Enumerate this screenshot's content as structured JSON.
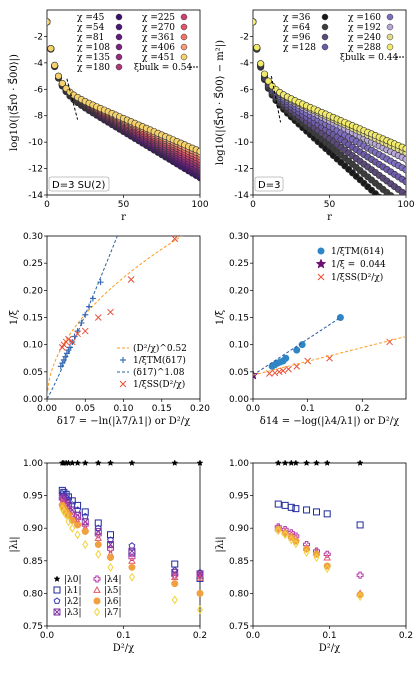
{
  "chart_data": [
    {
      "id": "tl",
      "type": "scatter",
      "annotation": "D=3 SU(2)",
      "xlabel": "r",
      "ylabel": "log10(|⟨S⃗r0 · S⃗00⟩|)",
      "xlim": [
        0,
        100
      ],
      "ylim": [
        -14,
        0
      ],
      "xticks": [
        0,
        50,
        100
      ],
      "yticks": [
        -14,
        -12,
        -10,
        -8,
        -6,
        -4,
        -2
      ],
      "legend_position": "top",
      "series": [
        {
          "name": "χ =45",
          "color": "#3b0f70",
          "slope": 0.07
        },
        {
          "name": "χ =54",
          "color": "#4a1478",
          "slope": 0.068
        },
        {
          "name": "χ =81",
          "color": "#611a7e",
          "slope": 0.066
        },
        {
          "name": "χ =108",
          "color": "#7a2281",
          "slope": 0.064
        },
        {
          "name": "χ =135",
          "color": "#932b80",
          "slope": 0.062
        },
        {
          "name": "χ =180",
          "color": "#b0367a",
          "slope": 0.06
        },
        {
          "name": "χ =225",
          "color": "#cd4071",
          "slope": 0.058
        },
        {
          "name": "χ =270",
          "color": "#e3566a",
          "slope": 0.056
        },
        {
          "name": "χ =361",
          "color": "#f1766a",
          "slope": 0.054
        },
        {
          "name": "χ =406",
          "color": "#f79c7a",
          "slope": 0.052
        },
        {
          "name": "χ =451",
          "color": "#f5d26b",
          "slope": 0.05
        }
      ],
      "reference": {
        "name": "ξbulk = 0.54",
        "x": [
          13,
          20
        ],
        "y": [
          -5.2,
          -8.3
        ]
      }
    },
    {
      "id": "tr",
      "type": "scatter",
      "annotation": "D=3",
      "xlabel": "r",
      "ylabel": "log10(|⟨S⃗r0 · S⃗00⟩ − m²|)",
      "xlim": [
        0,
        100
      ],
      "ylim": [
        -14,
        0
      ],
      "xticks": [
        0,
        50,
        100
      ],
      "yticks": [
        -14,
        -12,
        -10,
        -8,
        -6,
        -4,
        -2
      ],
      "legend_position": "top",
      "series": [
        {
          "name": "χ =36",
          "color": "#1a1a1a",
          "slope": 0.105
        },
        {
          "name": "χ =64",
          "color": "#3d3d3d",
          "slope": 0.095
        },
        {
          "name": "χ =96",
          "color": "#5b4a7a",
          "slope": 0.085
        },
        {
          "name": "χ =128",
          "color": "#6d5aa8",
          "slope": 0.075
        },
        {
          "name": "χ =160",
          "color": "#7f6ec0",
          "slope": 0.066
        },
        {
          "name": "χ =192",
          "color": "#b8a8d8",
          "slope": 0.058
        },
        {
          "name": "χ =240",
          "color": "#e2dc8a",
          "slope": 0.053
        },
        {
          "name": "χ =288",
          "color": "#f2ea6a",
          "slope": 0.05
        }
      ],
      "reference": {
        "name": "ξbulk = 0.44",
        "x": [
          12,
          18
        ],
        "y": [
          -5.0,
          -8.5
        ]
      }
    },
    {
      "id": "ml",
      "type": "scatter",
      "xlabel": "δ17 = −ln(|λ7/λ1|) or D²/χ",
      "ylabel": "1/ξ",
      "xlim": [
        0,
        0.2
      ],
      "ylim": [
        0,
        0.3
      ],
      "xticks": [
        0,
        0.05,
        0.1,
        0.15,
        0.2
      ],
      "yticks": [
        0,
        0.05,
        0.1,
        0.15,
        0.2,
        0.25,
        0.3
      ],
      "legend_position": "lower-right",
      "series": [
        {
          "name": "(D²/χ)^0.52",
          "style": "dashed",
          "color": "#ff9a1a",
          "fit": "power",
          "a": 0.74,
          "b": 0.52
        },
        {
          "name": "1/ξTM(δ17)",
          "style": "plus",
          "color": "#3b6fb6",
          "x": [
            0.018,
            0.02,
            0.022,
            0.024,
            0.026,
            0.028,
            0.03,
            0.033,
            0.036,
            0.04,
            0.045,
            0.05,
            0.055,
            0.06,
            0.07
          ],
          "y": [
            0.06,
            0.066,
            0.072,
            0.078,
            0.084,
            0.09,
            0.095,
            0.105,
            0.115,
            0.125,
            0.14,
            0.155,
            0.17,
            0.185,
            0.215
          ]
        },
        {
          "name": "(δ17)^1.08",
          "style": "dashed",
          "color": "#2a5fa6",
          "fit": "power",
          "a": 3.95,
          "b": 1.08
        },
        {
          "name": "1/ξSS(D²/χ)",
          "style": "cross",
          "color": "#e8503a",
          "x": [
            0.02,
            0.022,
            0.025,
            0.028,
            0.033,
            0.04,
            0.05,
            0.067,
            0.083,
            0.11,
            0.167
          ],
          "y": [
            0.095,
            0.1,
            0.105,
            0.11,
            0.105,
            0.12,
            0.125,
            0.15,
            0.16,
            0.22,
            0.295
          ]
        }
      ]
    },
    {
      "id": "mr",
      "type": "scatter",
      "xlabel": "δ14 = −log(|λ4/λ1|) or D²/χ",
      "ylabel": "1/ξ",
      "xlim": [
        0,
        0.28
      ],
      "ylim": [
        0,
        0.3
      ],
      "xticks": [
        0,
        0.1,
        0.2
      ],
      "yticks": [
        0,
        0.05,
        0.1,
        0.15,
        0.2,
        0.25,
        0.3
      ],
      "legend_position": "top-right",
      "series": [
        {
          "name": "1/ξTM(δ14)",
          "style": "circle",
          "color": "#2f86c6",
          "x": [
            0.035,
            0.04,
            0.045,
            0.05,
            0.055,
            0.06,
            0.08,
            0.09,
            0.16
          ],
          "y": [
            0.06,
            0.063,
            0.066,
            0.068,
            0.07,
            0.075,
            0.09,
            0.1,
            0.15
          ]
        },
        {
          "name": "1/ξ =",
          "value_label": "0.044",
          "style": "star",
          "color": "#6a0f73",
          "x": [
            0.0
          ],
          "y": [
            0.044
          ]
        },
        {
          "name": "1/ξSS(D²/χ)",
          "style": "cross",
          "color": "#e8503a",
          "x": [
            0.03,
            0.04,
            0.048,
            0.055,
            0.065,
            0.08,
            0.1,
            0.14,
            0.25
          ],
          "y": [
            0.047,
            0.048,
            0.05,
            0.052,
            0.055,
            0.06,
            0.07,
            0.075,
            0.105
          ]
        },
        {
          "name": "",
          "style": "dashed",
          "color": "#2a5fa6",
          "fit": "linear",
          "x": [
            0,
            0.16
          ],
          "y": [
            0.044,
            0.15
          ]
        },
        {
          "name": "",
          "style": "dashed",
          "color": "#ff9a1a",
          "fit": "linear",
          "x": [
            0,
            0.28
          ],
          "y": [
            0.044,
            0.115
          ]
        }
      ]
    },
    {
      "id": "bl",
      "type": "scatter",
      "xlabel": "D²/χ",
      "ylabel": "|λi|",
      "xlim": [
        0,
        0.2
      ],
      "ylim": [
        0.75,
        1.0
      ],
      "xticks": [
        0,
        0.1,
        0.2
      ],
      "yticks": [
        0.75,
        0.8,
        0.85,
        0.9,
        0.95,
        1.0
      ],
      "legend_position": "lower-left",
      "x": [
        0.02,
        0.022,
        0.025,
        0.028,
        0.033,
        0.04,
        0.05,
        0.067,
        0.083,
        0.111,
        0.167,
        0.2
      ],
      "series": [
        {
          "name": "|λ0|",
          "style": "star",
          "color": "#000000",
          "y": [
            1,
            1,
            1,
            1,
            1,
            1,
            1,
            1,
            1,
            1,
            1,
            1
          ]
        },
        {
          "name": "|λ1|",
          "style": "square",
          "color": "#1f2a9a",
          "y": [
            0.958,
            0.955,
            0.952,
            0.948,
            0.942,
            0.935,
            0.925,
            0.908,
            0.89,
            0.862,
            0.845,
            0.823
          ]
        },
        {
          "name": "|λ2|",
          "style": "pentagon",
          "color": "#3b37b5",
          "y": [
            0.953,
            0.95,
            0.947,
            0.943,
            0.936,
            0.928,
            0.918,
            0.9,
            0.882,
            0.873,
            0.835,
            0.832
          ]
        },
        {
          "name": "|λ3|",
          "style": "xbox",
          "color": "#7a2ea0",
          "y": [
            0.948,
            0.945,
            0.94,
            0.935,
            0.928,
            0.92,
            0.91,
            0.895,
            0.875,
            0.865,
            0.832,
            0.83
          ]
        },
        {
          "name": "|λ4|",
          "style": "plusbox",
          "color": "#b33aa8",
          "y": [
            0.945,
            0.94,
            0.935,
            0.93,
            0.922,
            0.915,
            0.905,
            0.89,
            0.868,
            0.855,
            0.828,
            0.828
          ]
        },
        {
          "name": "|λ5|",
          "style": "triangle",
          "color": "#e05a6a",
          "y": [
            0.94,
            0.935,
            0.93,
            0.925,
            0.918,
            0.91,
            0.9,
            0.885,
            0.86,
            0.85,
            0.825,
            0.824
          ]
        },
        {
          "name": "|λ6|",
          "style": "circle",
          "color": "#f0a040",
          "y": [
            0.935,
            0.93,
            0.925,
            0.92,
            0.912,
            0.905,
            0.895,
            0.875,
            0.855,
            0.84,
            0.815,
            0.8
          ]
        },
        {
          "name": "|λ7|",
          "style": "diamond",
          "color": "#f2d23a",
          "y": [
            0.93,
            0.925,
            0.92,
            0.91,
            0.9,
            0.89,
            0.875,
            0.86,
            0.84,
            0.825,
            0.79,
            0.775
          ]
        }
      ]
    },
    {
      "id": "br",
      "type": "scatter",
      "xlabel": "D²/χ",
      "ylabel": "|λi|",
      "xlim": [
        0,
        0.2
      ],
      "ylim": [
        0.75,
        1.0
      ],
      "xticks": [
        0,
        0.1,
        0.2
      ],
      "yticks": [
        0.75,
        0.8,
        0.85,
        0.9,
        0.95,
        1.0
      ],
      "x": [
        0.033,
        0.042,
        0.05,
        0.056,
        0.07,
        0.083,
        0.097,
        0.14
      ],
      "series": [
        {
          "name": "|λ0|",
          "style": "star",
          "color": "#000000",
          "y": [
            1,
            1,
            1,
            1,
            1,
            1,
            1,
            1
          ]
        },
        {
          "name": "|λ1|",
          "style": "square",
          "color": "#1f2a9a",
          "y": [
            0.937,
            0.935,
            0.932,
            0.93,
            0.928,
            0.925,
            0.922,
            0.905
          ]
        },
        {
          "name": "|λ4|",
          "style": "plusbox",
          "color": "#b33aa8",
          "y": [
            0.902,
            0.898,
            0.893,
            0.888,
            0.875,
            0.865,
            0.86,
            0.828
          ]
        },
        {
          "name": "|λ5|",
          "style": "triangle",
          "color": "#e05a6a",
          "y": [
            0.9,
            0.895,
            0.89,
            0.885,
            0.87,
            0.863,
            0.855,
            0.8
          ]
        },
        {
          "name": "|λ6|",
          "style": "circle",
          "color": "#f0a040",
          "y": [
            0.898,
            0.892,
            0.886,
            0.88,
            0.868,
            0.86,
            0.842,
            0.798
          ]
        },
        {
          "name": "|λ7|",
          "style": "diamond",
          "color": "#f2d23a",
          "y": [
            0.896,
            0.89,
            0.882,
            0.876,
            0.863,
            0.855,
            0.838,
            0.795
          ]
        }
      ]
    }
  ]
}
